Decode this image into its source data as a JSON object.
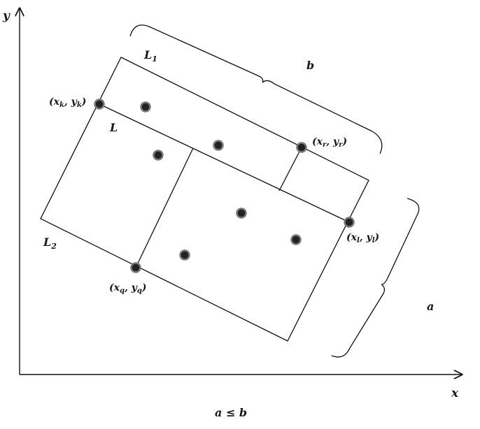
{
  "axes": {
    "x_label": "x",
    "y_label": "y"
  },
  "labels": {
    "L1": {
      "main": "L",
      "sub": "1"
    },
    "L2": {
      "main": "L",
      "sub": "2"
    },
    "L": "L",
    "b": "b",
    "a": "a",
    "k": {
      "open": "(",
      "x": "x",
      "xs": "k",
      "comma": ", ",
      "y": "y",
      "ys": "k",
      "close": ")"
    },
    "r": {
      "open": "(",
      "x": "x",
      "xs": "r",
      "comma": ", ",
      "y": "y",
      "ys": "r",
      "close": ")"
    },
    "l": {
      "open": "(",
      "x": "x",
      "xs": "l",
      "comma": ", ",
      "y": "y",
      "ys": "l",
      "close": ")"
    },
    "q": {
      "open": "(",
      "x": "x",
      "xs": "q",
      "comma": ", ",
      "y": "y",
      "ys": "q",
      "close": ")"
    },
    "condition": "a ≤ b"
  },
  "colors": {
    "stroke": "#111111",
    "point_fill": "#222222",
    "point_ring": "#777777"
  }
}
